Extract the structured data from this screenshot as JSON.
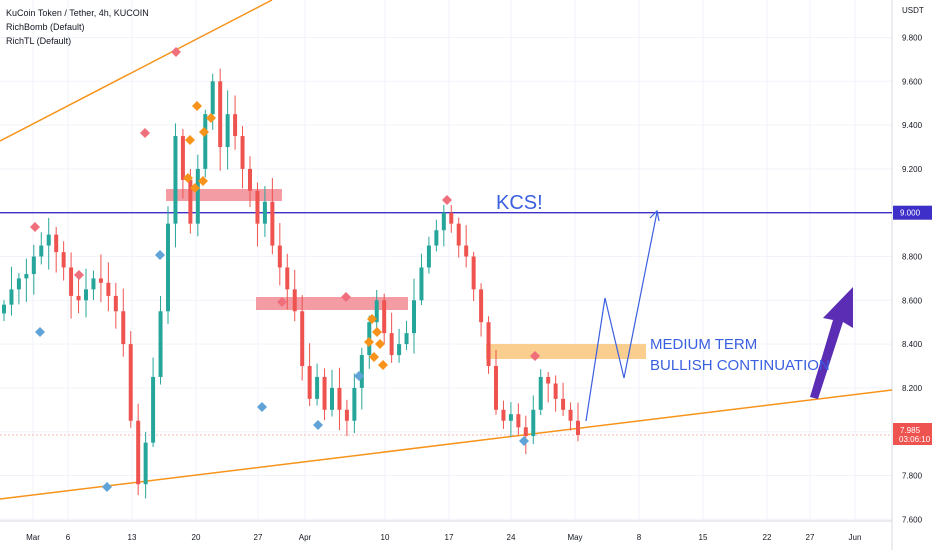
{
  "legend": {
    "symbol": "KuCoin Token / Tether, 4h, KUCOIN",
    "indicator_1": "RichBomb (Default)",
    "indicator_2": "RichTL (Default)"
  },
  "price_axis": {
    "currency": "USDT",
    "level_badge": "9.000",
    "last_price": "7.985",
    "countdown": "03:06:10"
  },
  "annotations": {
    "kcs": "KCS!",
    "line1": "MEDIUM TERM",
    "line2": "BULLISH CONTINUATION"
  },
  "colors": {
    "up": "#26a69a",
    "down": "#ef5350",
    "trendline": "#f7931a",
    "level": "#3d2fc7",
    "arrow": "#3a5fe0",
    "big_arrow": "#5b2db5",
    "zone_red": "#f28b94",
    "zone_orange": "#f9c57a"
  },
  "chart_data": {
    "type": "candlestick",
    "title": "KuCoin Token / Tether, 4h, KUCOIN",
    "x_tick_labels": [
      "Mar",
      "6",
      "13",
      "20",
      "27",
      "Apr",
      "10",
      "17",
      "24",
      "May",
      "8",
      "15",
      "22",
      "27",
      "Jun"
    ],
    "y_tick_labels": [
      "9.800",
      "9.600",
      "9.400",
      "9.200",
      "9.000",
      "8.800",
      "8.600",
      "8.400",
      "8.200",
      "8.000",
      "7.800",
      "7.600"
    ],
    "ylim": [
      7.55,
      10.05
    ],
    "horizontal_level": 9.0,
    "last_price": 7.985,
    "series": [
      {
        "values": [
          8.58,
          8.65,
          8.7,
          8.72,
          8.8,
          8.85,
          8.9,
          8.82,
          8.75,
          8.62,
          8.6,
          8.65,
          8.7,
          8.68,
          8.62,
          8.55,
          8.4,
          8.05,
          7.76,
          7.95,
          8.25,
          8.55,
          8.95,
          9.35,
          9.15,
          8.95,
          9.2,
          9.45,
          9.6,
          9.3,
          9.45,
          9.35,
          9.2,
          9.1,
          8.95,
          9.05,
          8.85,
          8.75,
          8.65,
          8.55,
          8.3,
          8.15,
          8.25,
          8.1,
          8.2,
          8.1,
          8.05,
          8.2,
          8.35,
          8.5,
          8.6,
          8.45,
          8.35,
          8.4,
          8.45,
          8.6,
          8.75,
          8.85,
          8.92,
          9.0,
          8.95,
          8.85,
          8.8,
          8.65,
          8.5,
          8.3,
          8.1,
          8.05,
          8.08,
          8.02,
          7.98,
          8.1,
          8.25,
          8.22,
          8.15,
          8.1,
          8.05,
          7.985
        ]
      }
    ]
  }
}
